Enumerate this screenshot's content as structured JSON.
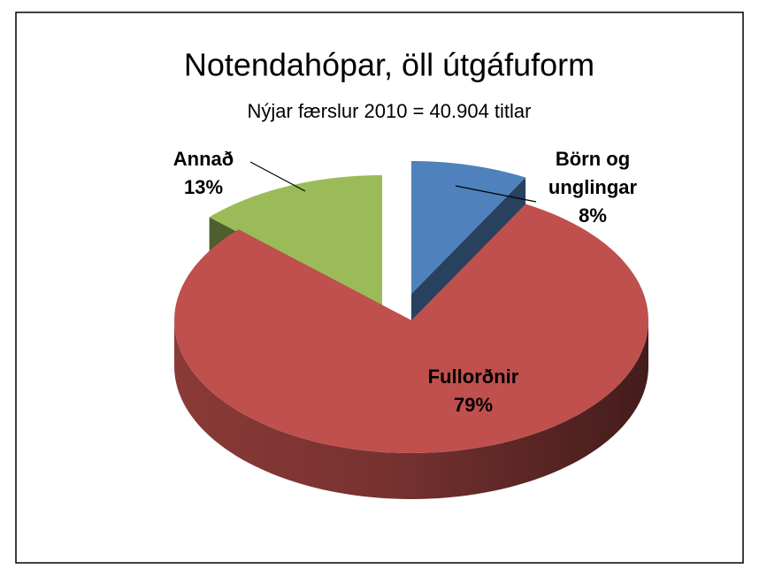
{
  "chart_data": {
    "type": "pie3d",
    "title": "Notendahópar, öll útgáfuform",
    "subtitle": "Nýjar færslur 2010 = 40.904 titlar",
    "categories": [
      "Börn og unglingar",
      "Fullorðnir",
      "Annað"
    ],
    "values": [
      8,
      79,
      13
    ],
    "value_labels": [
      "8%",
      "79%",
      "13%"
    ],
    "colors": [
      "#4f81bd",
      "#c0504d",
      "#9bbb59"
    ]
  }
}
